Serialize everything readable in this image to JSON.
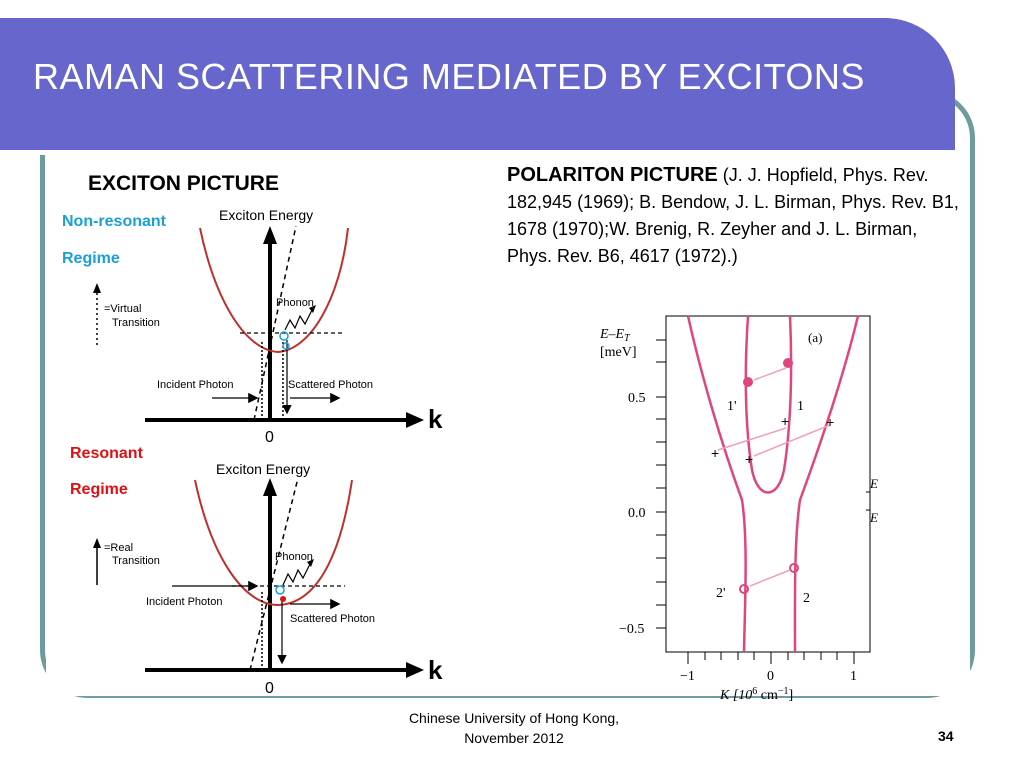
{
  "slide": {
    "title": "RAMAN SCATTERING MEDIATED BY EXCITONS",
    "page_number": "34"
  },
  "footer": {
    "line1": "Chinese University of Hong Kong,",
    "line2": "November 2012"
  },
  "exciton": {
    "heading": "EXCITON PICTURE",
    "nonresonant": {
      "label_line1": "Non-resonant",
      "label_line2": "Regime",
      "axis_title": "Exciton Energy",
      "legend_line1": "=Virtual",
      "legend_line2": "Transition",
      "phonon": "Phonon",
      "incident": "Incident Photon",
      "scattered": "Scattered Photon",
      "k_label": "k",
      "origin": "0"
    },
    "resonant": {
      "label_line1": "Resonant",
      "label_line2": "Regime",
      "axis_title": "Exciton Energy",
      "legend_line1": "=Real",
      "legend_line2": "Transition",
      "phonon": "Phonon",
      "incident": "Incident Photon",
      "scattered": "Scattered Photon",
      "k_label": "k",
      "origin": "0"
    }
  },
  "polariton": {
    "heading": "POLARITON PICTURE",
    "citation": " (J. J. Hopfield, Phys. Rev. 182,945 (1969); B. Bendow, J. L. Birman, Phys. Rev. B1, 1678 (1970);W. Brenig, R. Zeyher and J. L. Birman, Phys. Rev. B6, 4617 (1972).)",
    "plot": {
      "y_label_line1": "E–E",
      "y_label_sub": "T",
      "y_label_line2": "[meV]",
      "panel": "(a)",
      "y_ticks": [
        "0.5",
        "0.0",
        "−0.5"
      ],
      "x_ticks": [
        "−1",
        "0",
        "1"
      ],
      "x_label_main": "K [10",
      "x_label_sup": "6",
      "x_label_unit": " cm",
      "x_label_sup2": "−1",
      "x_label_end": "]",
      "branch_labels": [
        "1'",
        "1",
        "2'",
        "2"
      ],
      "side_glyphs": [
        "E",
        "E"
      ],
      "plus": "+"
    }
  },
  "colors": {
    "header": "#6666cc",
    "frame": "#6e9b9b",
    "curve_red": "#c0302a",
    "polariton_pink": "#e0457f",
    "label_blue": "#19a0d8",
    "label_red": "#dd1111"
  }
}
